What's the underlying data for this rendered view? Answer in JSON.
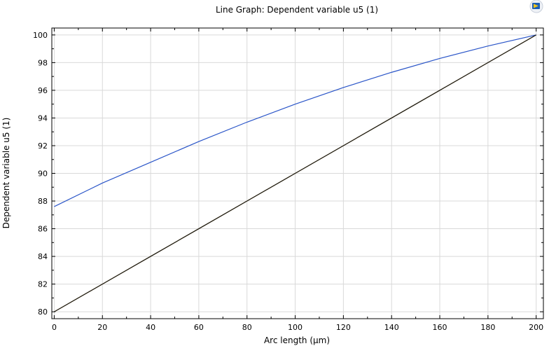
{
  "chart_data": {
    "type": "line",
    "title": "Line Graph: Dependent variable u5 (1)",
    "xlabel": "Arc length (µm)",
    "ylabel": "Dependent variable u5 (1)",
    "xlim": [
      -1,
      203
    ],
    "ylim": [
      79.5,
      100.5
    ],
    "xticks": [
      0,
      20,
      40,
      60,
      80,
      100,
      120,
      140,
      160,
      180,
      200
    ],
    "yticks": [
      80,
      82,
      84,
      86,
      88,
      90,
      92,
      94,
      96,
      98,
      100
    ],
    "grid": true,
    "x": [
      0,
      20,
      40,
      60,
      80,
      100,
      120,
      140,
      160,
      180,
      200
    ],
    "series": [
      {
        "color": "#2a55c8",
        "values": [
          87.6,
          89.3,
          90.8,
          92.3,
          93.7,
          95.0,
          96.2,
          97.3,
          98.3,
          99.2,
          100.0
        ]
      },
      {
        "color": "#1a1a1a",
        "values": [
          80,
          82,
          84,
          86,
          88,
          90,
          92,
          94,
          96,
          98,
          100
        ]
      },
      {
        "color": "#b8860b",
        "values": [
          80,
          82,
          84,
          86,
          88,
          90,
          92,
          94,
          96,
          98,
          100
        ]
      }
    ]
  },
  "toolbar": {
    "icon": "comsol-logo-icon"
  }
}
